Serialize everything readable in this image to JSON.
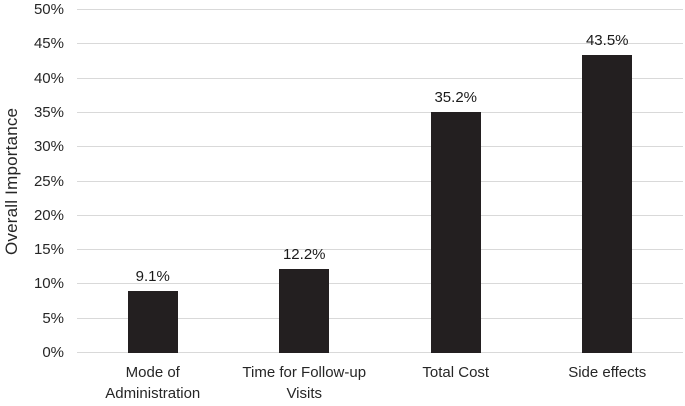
{
  "chart_data": {
    "type": "bar",
    "title": "",
    "xlabel": "",
    "ylabel": "Overall Importance",
    "categories": [
      "Mode of Administration",
      "Time for Follow-up Visits",
      "Total Cost",
      "Side effects"
    ],
    "values": [
      9.1,
      12.2,
      35.2,
      43.5
    ],
    "value_labels": [
      "9.1%",
      "12.2%",
      "35.2%",
      "43.5%"
    ],
    "ylim": [
      0,
      50
    ],
    "ytick_step": 5,
    "ytick_labels": [
      "0%",
      "5%",
      "10%",
      "15%",
      "20%",
      "25%",
      "30%",
      "35%",
      "40%",
      "45%",
      "50%"
    ],
    "grid": "horizontal",
    "legend_position": "none",
    "colors": {
      "bar": "#231f20",
      "gridline": "#d9d9d9",
      "text": "#262626",
      "background": "#ffffff"
    }
  }
}
